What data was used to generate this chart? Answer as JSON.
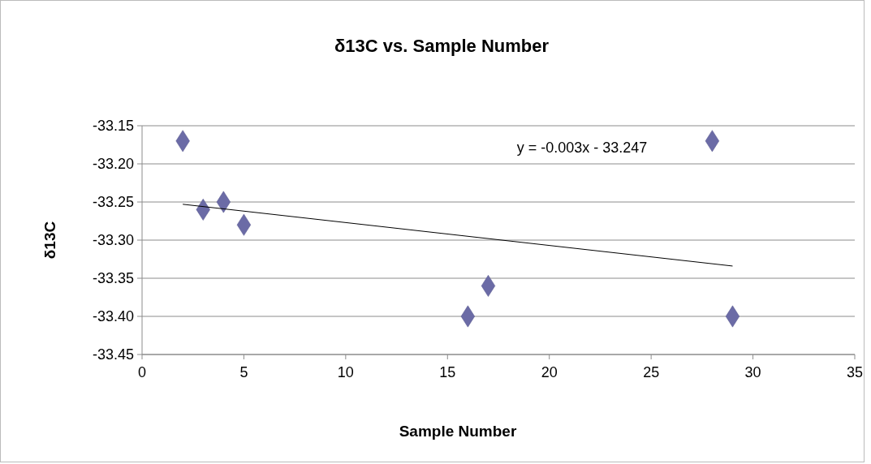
{
  "chart_data": {
    "type": "scatter",
    "title": "δ13C vs. Sample Number",
    "xlabel": "Sample Number",
    "ylabel": "δ13C",
    "xlim": [
      0,
      35
    ],
    "xticks": [
      0,
      5,
      10,
      15,
      20,
      25,
      30,
      35
    ],
    "ylim": [
      -33.45,
      -33.15
    ],
    "yticks": [
      {
        "value": -33.45,
        "label": "-33.45"
      },
      {
        "value": -33.4,
        "label": "-33.40"
      },
      {
        "value": -33.35,
        "label": "-33.35"
      },
      {
        "value": -33.3,
        "label": "-33.30"
      },
      {
        "value": -33.25,
        "label": "-33.25"
      },
      {
        "value": -33.2,
        "label": "-33.20"
      },
      {
        "value": -33.15,
        "label": "-33.15"
      }
    ],
    "grid": "y",
    "series": [
      {
        "marker": "diamond",
        "color": "#6b6ba6",
        "x": [
          2,
          3,
          4,
          5,
          16,
          17,
          28,
          29
        ],
        "values": [
          -33.17,
          -33.26,
          -33.25,
          -33.28,
          -33.4,
          -33.36,
          -33.17,
          -33.4
        ]
      },
      {
        "type": "line",
        "marker": "none",
        "color": "#000000",
        "x": [
          2,
          29
        ],
        "values": [
          -33.253,
          -33.334
        ]
      }
    ],
    "annotations": [
      "y = -0.003x - 33.247"
    ]
  }
}
